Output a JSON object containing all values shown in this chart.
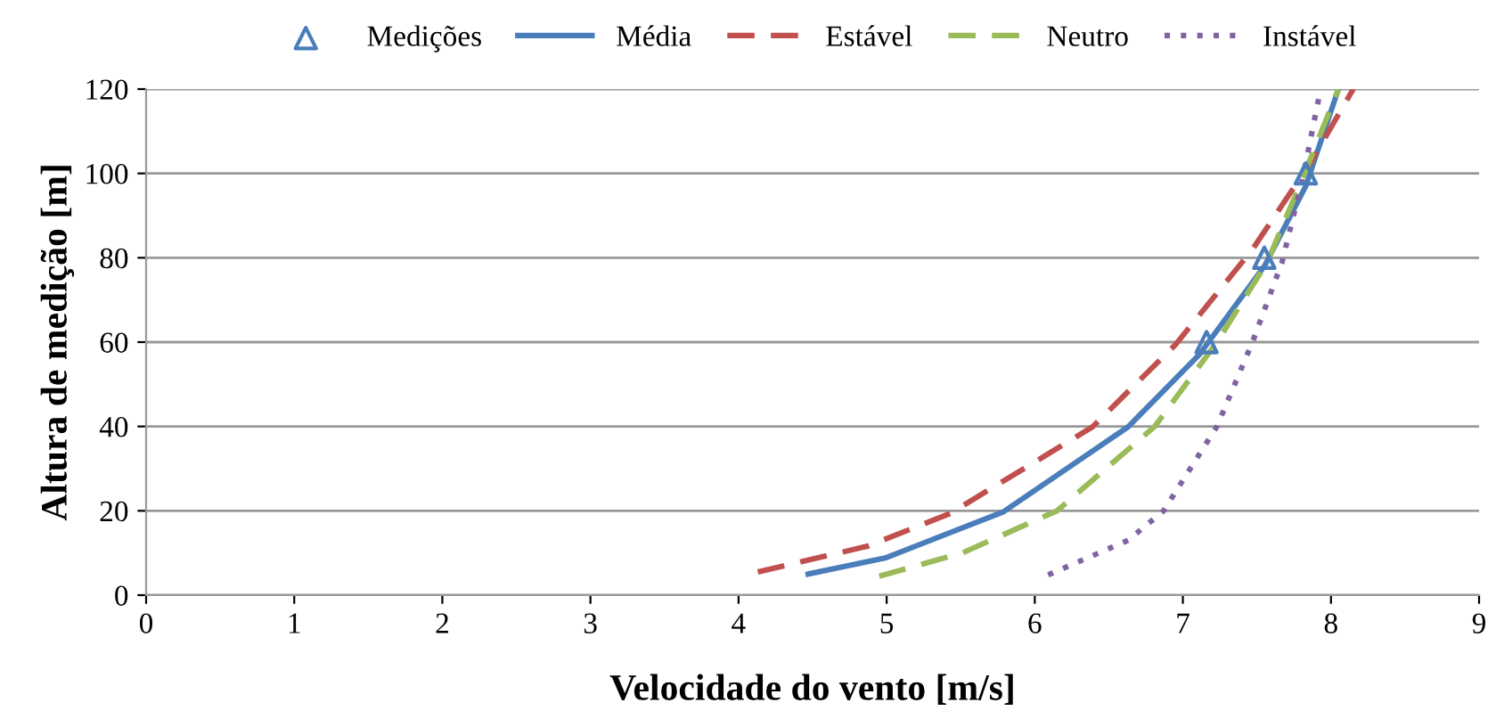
{
  "chart_data": {
    "type": "line",
    "xlabel": "Velocidade do vento [m/s]",
    "ylabel": "Altura de medição [m]",
    "xlim": [
      0,
      9
    ],
    "xticks": [
      0,
      1,
      2,
      3,
      4,
      5,
      6,
      7,
      8,
      9
    ],
    "ylim": [
      0,
      120
    ],
    "yticks": [
      0,
      20,
      40,
      60,
      80,
      100,
      120
    ],
    "grid": "y",
    "legend": "top",
    "series": [
      {
        "name": "Medições",
        "type": "scatter",
        "marker": "triangle",
        "color": "#4a7ebb",
        "x": [
          7.16,
          7.55,
          7.83
        ],
        "values": [
          60,
          80,
          100
        ]
      },
      {
        "name": "Média",
        "line_style": "solid",
        "color": "#4a7ebb",
        "x": [
          4.47,
          4.99,
          5.79,
          6.63,
          7.11,
          7.55,
          7.83,
          8.05
        ],
        "values": [
          5,
          8.8,
          19.8,
          39.9,
          57,
          78,
          97,
          120
        ]
      },
      {
        "name": "Estável",
        "line_style": "dashed",
        "color": "#c0504d",
        "x": [
          4.13,
          4.87,
          5.43,
          6.39,
          6.95,
          7.47,
          7.87,
          8.15
        ],
        "values": [
          5.5,
          11.6,
          19.4,
          39.9,
          59.4,
          82,
          103,
          120
        ]
      },
      {
        "name": "Neutro",
        "line_style": "dashed",
        "color": "#9bbb59",
        "x": [
          4.95,
          5.51,
          6.15,
          6.81,
          7.23,
          7.57,
          7.81,
          8.05
        ],
        "values": [
          4.5,
          10,
          20,
          40,
          60,
          79,
          99,
          120
        ]
      },
      {
        "name": "Instável",
        "line_style": "dotted",
        "color": "#8064a2",
        "x": [
          6.09,
          6.63,
          6.87,
          7.23,
          7.47,
          7.67,
          7.81,
          7.93
        ],
        "values": [
          4.8,
          13,
          20,
          40,
          60,
          79,
          99,
          120
        ]
      }
    ]
  }
}
